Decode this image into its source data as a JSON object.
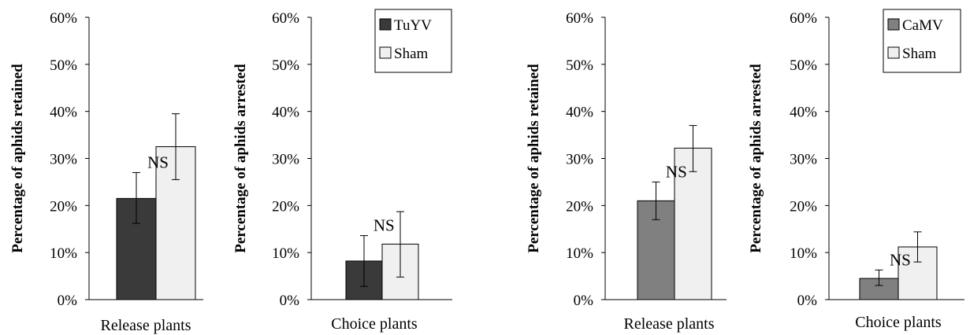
{
  "chart_data": [
    {
      "type": "bar",
      "ylabel": "Percentage of aphids retained",
      "categories": [
        "Release plants"
      ],
      "ylim": [
        0,
        0.6
      ],
      "yticks": [
        "0%",
        "10%",
        "20%",
        "30%",
        "40%",
        "50%",
        "60%"
      ],
      "series": [
        {
          "name": "TuYV",
          "color": "#3a3a3a",
          "values": [
            0.215
          ],
          "error": [
            [
              0.162,
              0.27
            ]
          ]
        },
        {
          "name": "Sham",
          "color": "#f0f0f0",
          "values": [
            0.325
          ],
          "error": [
            [
              0.255,
              0.395
            ]
          ]
        }
      ],
      "annotations": [
        "NS"
      ],
      "legend": null
    },
    {
      "type": "bar",
      "ylabel": "Percentage of aphids arrested",
      "categories": [
        "Choice plants"
      ],
      "ylim": [
        0,
        0.6
      ],
      "yticks": [
        "0%",
        "10%",
        "20%",
        "30%",
        "40%",
        "50%",
        "60%"
      ],
      "series": [
        {
          "name": "TuYV",
          "color": "#3a3a3a",
          "values": [
            0.082
          ],
          "error": [
            [
              0.028,
              0.136
            ]
          ]
        },
        {
          "name": "Sham",
          "color": "#f0f0f0",
          "values": [
            0.118
          ],
          "error": [
            [
              0.048,
              0.187
            ]
          ]
        }
      ],
      "annotations": [
        "NS"
      ],
      "legend": {
        "position": "top-right",
        "entries": [
          "TuYV",
          "Sham"
        ]
      }
    },
    {
      "type": "bar",
      "ylabel": "Percentage of aphids retained",
      "categories": [
        "Release plants"
      ],
      "ylim": [
        0,
        0.6
      ],
      "yticks": [
        "0%",
        "10%",
        "20%",
        "30%",
        "40%",
        "50%",
        "60%"
      ],
      "series": [
        {
          "name": "CaMV",
          "color": "#808080",
          "values": [
            0.21
          ],
          "error": [
            [
              0.17,
              0.25
            ]
          ]
        },
        {
          "name": "Sham",
          "color": "#f0f0f0",
          "values": [
            0.322
          ],
          "error": [
            [
              0.272,
              0.37
            ]
          ]
        }
      ],
      "annotations": [
        "NS"
      ],
      "legend": null
    },
    {
      "type": "bar",
      "ylabel": "Percentage of aphids arrested",
      "categories": [
        "Choice plants"
      ],
      "ylim": [
        0,
        0.6
      ],
      "yticks": [
        "0%",
        "10%",
        "20%",
        "30%",
        "40%",
        "50%",
        "60%"
      ],
      "series": [
        {
          "name": "CaMV",
          "color": "#808080",
          "values": [
            0.045
          ],
          "error": [
            [
              0.03,
              0.063
            ]
          ]
        },
        {
          "name": "Sham",
          "color": "#f0f0f0",
          "values": [
            0.112
          ],
          "error": [
            [
              0.08,
              0.144
            ]
          ]
        }
      ],
      "annotations": [
        "NS"
      ],
      "legend": {
        "position": "top-right",
        "entries": [
          "CaMV",
          "Sham"
        ]
      }
    }
  ]
}
